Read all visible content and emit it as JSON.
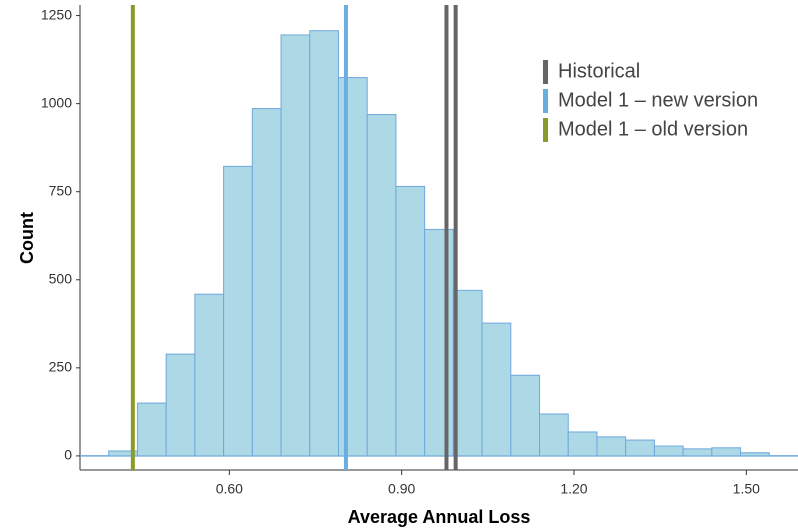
{
  "chart_data": {
    "type": "histogram",
    "x_label": "Average Annual Loss",
    "y_label": "Count",
    "bins": [
      0.39,
      0.44,
      0.49,
      0.54,
      0.59,
      0.64,
      0.69,
      0.74,
      0.79,
      0.84,
      0.89,
      0.94,
      0.99,
      1.04,
      1.09,
      1.14,
      1.19,
      1.24,
      1.29,
      1.34,
      1.39,
      1.44,
      1.49,
      1.54
    ],
    "values": [
      14,
      150,
      289,
      459,
      822,
      986,
      1195,
      1207,
      1074,
      969,
      765,
      643,
      470,
      377,
      229,
      119,
      68,
      54,
      45,
      28,
      20,
      23,
      9
    ],
    "color": "#add8e6",
    "edge_color": "#6fa8dc",
    "reference_lines": [
      {
        "name": "Historical",
        "color": "#666666",
        "values": [
          0.978,
          0.994
        ]
      },
      {
        "name": "Model 1 – new version",
        "color": "#6aaee0",
        "values": [
          0.803
        ]
      },
      {
        "name": "Model 1 – old version",
        "color": "#8c9a2c",
        "values": [
          0.432
        ]
      }
    ],
    "xlim": [
      0.34,
      1.59
    ],
    "xticks": [
      {
        "value": 0.6,
        "label": "0.60"
      },
      {
        "value": 0.9,
        "label": "0.90"
      },
      {
        "value": 1.2,
        "label": "1.20"
      },
      {
        "value": 1.5,
        "label": "1.50"
      }
    ],
    "ylim": [
      -40,
      1280
    ],
    "yticks": [
      0,
      250,
      500,
      750,
      1000,
      1250
    ]
  }
}
